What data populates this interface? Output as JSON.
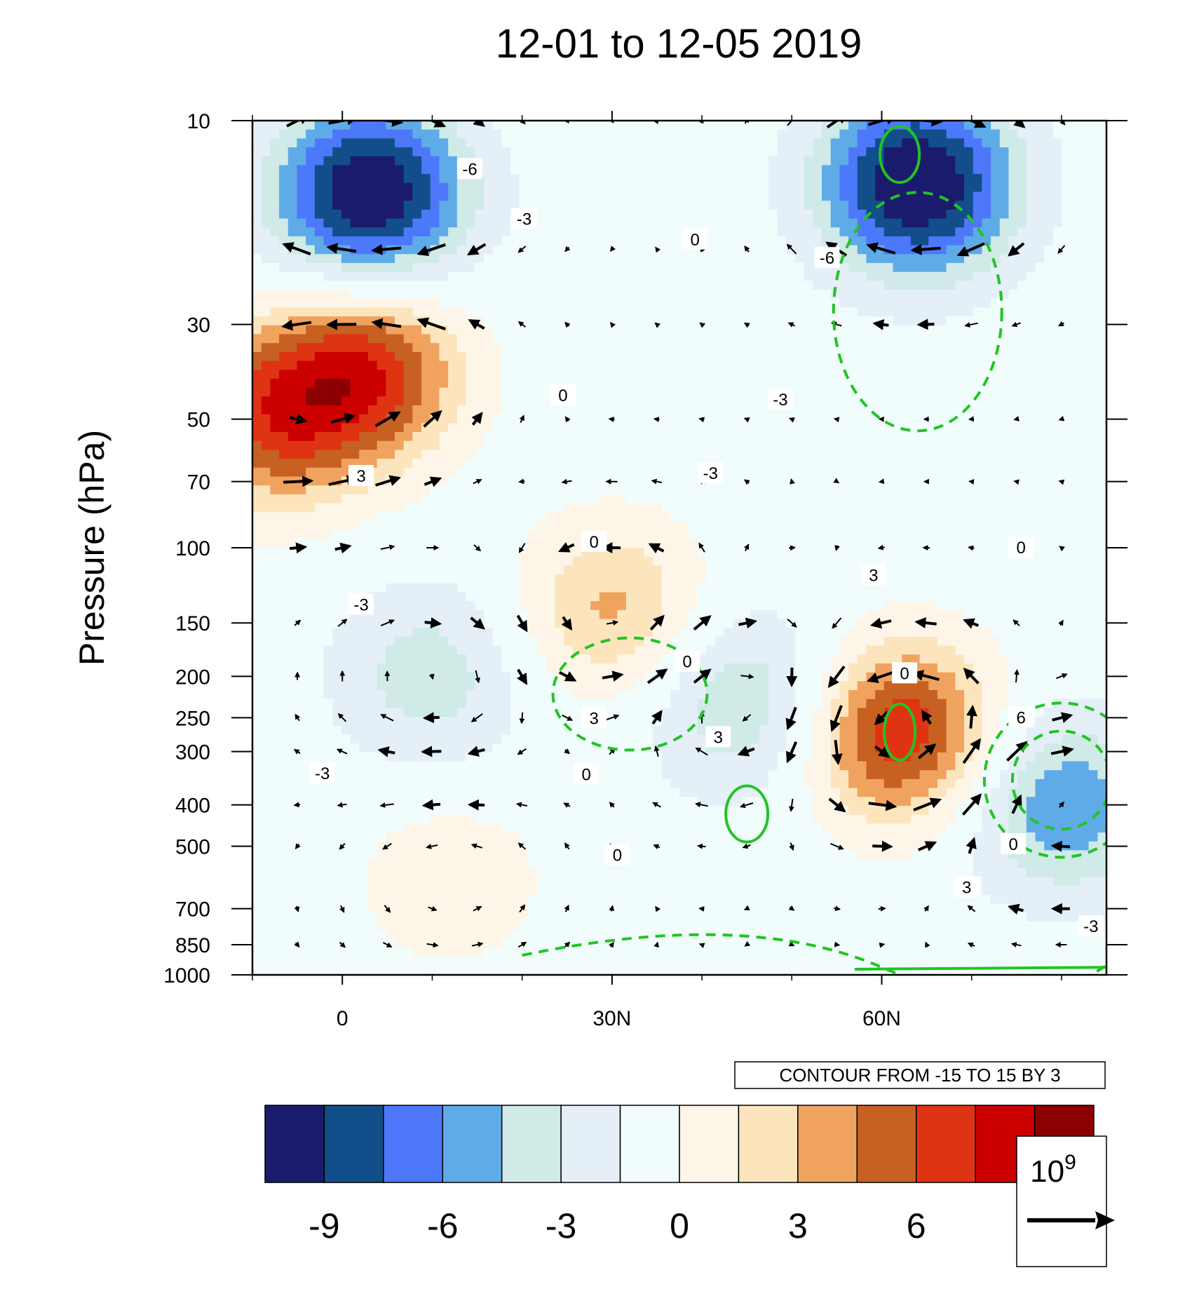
{
  "chart_data": {
    "type": "heatmap",
    "title": "12-01 to 12-05 2019",
    "ylabel": "Pressure (hPa)",
    "xlabel": "",
    "x_axis": {
      "unit": "degrees latitude",
      "range": [
        -10,
        85
      ],
      "ticks": [
        0,
        30,
        60
      ],
      "tick_labels": [
        "0",
        "30N",
        "60N"
      ],
      "minor_ticks": [
        -10,
        10,
        20,
        40,
        50,
        70,
        80
      ]
    },
    "y_axis": {
      "scale": "log",
      "reversed": true,
      "range": [
        10,
        1000
      ],
      "ticks": [
        10,
        30,
        50,
        70,
        100,
        150,
        200,
        250,
        300,
        400,
        500,
        700,
        850,
        1000
      ],
      "tick_labels": [
        "10",
        "30",
        "50",
        "70",
        "100",
        "150",
        "200",
        "250",
        "300",
        "400",
        "500",
        "700",
        "850",
        "1000"
      ]
    },
    "contour_info": "CONTOUR FROM -15 TO 15 BY 3",
    "colorbar": {
      "colors": [
        "#1b1b6e",
        "#124e8a",
        "#4d78fa",
        "#5fabe8",
        "#d0eae8",
        "#e4eff7",
        "#f1fdfd",
        "#fdf6e8",
        "#fce5bd",
        "#f0a35f",
        "#c76122",
        "#df3413",
        "#cd0000",
        "#8b0000"
      ],
      "tick_values": [
        -9,
        -6,
        -3,
        0,
        3,
        6
      ],
      "tick_labels": [
        "-9",
        "-6",
        "-3",
        "0",
        "3",
        "6"
      ]
    },
    "vector_reference": {
      "label": "10",
      "exponent": "9"
    },
    "contour_labels": [
      {
        "text": "-6",
        "x": 28,
        "p": 13
      },
      {
        "text": "-3",
        "x": 35,
        "p": 17
      },
      {
        "text": "0",
        "x": 57,
        "p": 19
      },
      {
        "text": "-6",
        "x": 74,
        "p": 21
      },
      {
        "text": "0",
        "x": 40,
        "p": 44
      },
      {
        "text": "-3",
        "x": 68,
        "p": 45
      },
      {
        "text": "3",
        "x": 14,
        "p": 68
      },
      {
        "text": "-3",
        "x": 59,
        "p": 67
      },
      {
        "text": "0",
        "x": 44,
        "p": 97
      },
      {
        "text": "3",
        "x": 80,
        "p": 116
      },
      {
        "text": "0",
        "x": 99,
        "p": 100
      },
      {
        "text": "-3",
        "x": 14,
        "p": 136
      },
      {
        "text": "0",
        "x": 56,
        "p": 185
      },
      {
        "text": "0",
        "x": 84,
        "p": 197
      },
      {
        "text": "3",
        "x": 44,
        "p": 251
      },
      {
        "text": "6",
        "x": 99,
        "p": 250
      },
      {
        "text": "3",
        "x": 60,
        "p": 278
      },
      {
        "text": "-3",
        "x": 9,
        "p": 338
      },
      {
        "text": "0",
        "x": 43,
        "p": 340
      },
      {
        "text": "0",
        "x": 47,
        "p": 525
      },
      {
        "text": "0",
        "x": 98,
        "p": 495
      },
      {
        "text": "3",
        "x": 92,
        "p": 625
      },
      {
        "text": "-3",
        "x": 108,
        "p": 770
      }
    ],
    "field_anomaly": {
      "description_units": "contour levels every 3",
      "centers": [
        {
          "lat": 3,
          "p": 15,
          "value": -11
        },
        {
          "lat": 64,
          "p": 14,
          "value": -11
        },
        {
          "lat": 3,
          "p": 38,
          "value": 8
        },
        {
          "lat": -8,
          "p": 50,
          "value": 7
        },
        {
          "lat": 62,
          "p": 270,
          "value": 9
        },
        {
          "lat": 30,
          "p": 140,
          "value": 5
        },
        {
          "lat": 45,
          "p": 230,
          "value": -5
        },
        {
          "lat": 80,
          "p": 400,
          "value": -6
        },
        {
          "lat": 12,
          "p": 600,
          "value": 2.5
        },
        {
          "lat": 10,
          "p": 200,
          "value": -4
        }
      ]
    }
  }
}
